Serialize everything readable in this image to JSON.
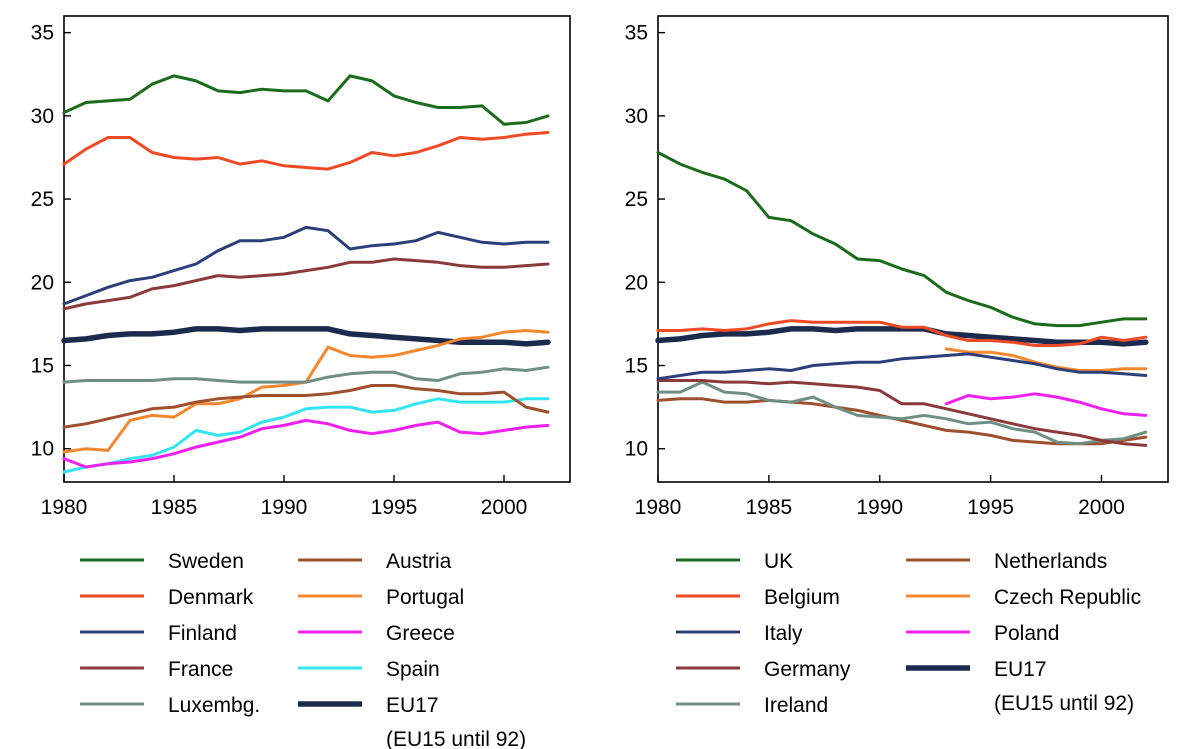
{
  "chart_data": [
    {
      "type": "line",
      "x": [
        1980,
        1981,
        1982,
        1983,
        1984,
        1985,
        1986,
        1987,
        1988,
        1989,
        1990,
        1991,
        1992,
        1993,
        1994,
        1995,
        1996,
        1997,
        1998,
        1999,
        2000,
        2001,
        2002
      ],
      "xlim": [
        1980,
        2003
      ],
      "ylim": [
        8,
        36
      ],
      "xticks": [
        "1980",
        "1985",
        "1990",
        "1995",
        "2000"
      ],
      "yticks": [
        "10",
        "15",
        "20",
        "25",
        "30",
        "35"
      ],
      "legend_position": "bottom",
      "series": [
        {
          "name": "Sweden",
          "color": "#1a6b1a",
          "width": 3,
          "values": [
            30.2,
            30.8,
            30.9,
            31.0,
            31.9,
            32.4,
            32.1,
            31.5,
            31.4,
            31.6,
            31.5,
            31.5,
            30.9,
            32.4,
            32.1,
            31.2,
            30.8,
            30.5,
            30.5,
            30.6,
            29.5,
            29.6,
            30.0
          ]
        },
        {
          "name": "Denmark",
          "color": "#f04a24",
          "width": 3,
          "values": [
            27.1,
            28.0,
            28.7,
            28.7,
            27.8,
            27.5,
            27.4,
            27.5,
            27.1,
            27.3,
            27.0,
            26.9,
            26.8,
            27.2,
            27.8,
            27.6,
            27.8,
            28.2,
            28.7,
            28.6,
            28.7,
            28.9,
            29.0
          ]
        },
        {
          "name": "Finland",
          "color": "#2b3f7a",
          "width": 3,
          "values": [
            18.7,
            19.2,
            19.7,
            20.1,
            20.3,
            20.7,
            21.1,
            21.9,
            22.5,
            22.5,
            22.7,
            23.3,
            23.1,
            22.0,
            22.2,
            22.3,
            22.5,
            23.0,
            22.7,
            22.4,
            22.3,
            22.4,
            22.4
          ]
        },
        {
          "name": "France",
          "color": "#8b3a3a",
          "width": 3,
          "values": [
            18.4,
            18.7,
            18.9,
            19.1,
            19.6,
            19.8,
            20.1,
            20.4,
            20.3,
            20.4,
            20.5,
            20.7,
            20.9,
            21.2,
            21.2,
            21.4,
            21.3,
            21.2,
            21.0,
            20.9,
            20.9,
            21.0,
            21.1
          ]
        },
        {
          "name": "Luxembg.",
          "color": "#6f8f84",
          "width": 3,
          "values": [
            14.0,
            14.1,
            14.1,
            14.1,
            14.1,
            14.2,
            14.2,
            14.1,
            14.0,
            14.0,
            14.0,
            14.0,
            14.3,
            14.5,
            14.6,
            14.6,
            14.2,
            14.1,
            14.5,
            14.6,
            14.8,
            14.7,
            14.9
          ]
        },
        {
          "name": "Austria",
          "color": "#9e4f2e",
          "width": 3,
          "values": [
            11.3,
            11.5,
            11.8,
            12.1,
            12.4,
            12.5,
            12.8,
            13.0,
            13.1,
            13.2,
            13.2,
            13.2,
            13.3,
            13.5,
            13.8,
            13.8,
            13.6,
            13.5,
            13.3,
            13.3,
            13.4,
            12.5,
            12.2
          ]
        },
        {
          "name": "Portugal",
          "color": "#f5872f",
          "width": 3,
          "values": [
            9.8,
            10.0,
            9.9,
            11.7,
            12.0,
            11.9,
            12.7,
            12.7,
            13.0,
            13.7,
            13.8,
            14.0,
            16.1,
            15.6,
            15.5,
            15.6,
            15.9,
            16.2,
            16.6,
            16.7,
            17.0,
            17.1,
            17.0
          ]
        },
        {
          "name": "Greece",
          "color": "#f020f0",
          "width": 3,
          "values": [
            9.4,
            8.9,
            9.1,
            9.2,
            9.4,
            9.7,
            10.1,
            10.4,
            10.7,
            11.2,
            11.4,
            11.7,
            11.5,
            11.1,
            10.9,
            11.1,
            11.4,
            11.6,
            11.0,
            10.9,
            11.1,
            11.3,
            11.4
          ]
        },
        {
          "name": "Spain",
          "color": "#33e5f0",
          "width": 3,
          "values": [
            8.6,
            8.9,
            9.1,
            9.4,
            9.6,
            10.1,
            11.1,
            10.8,
            11.0,
            11.6,
            11.9,
            12.4,
            12.5,
            12.5,
            12.2,
            12.3,
            12.7,
            13.0,
            12.8,
            12.8,
            12.8,
            13.0,
            13.0
          ]
        },
        {
          "name": "EU17",
          "label2": "(EU15 until 92)",
          "color": "#1c2a4e",
          "width": 5.5,
          "values": [
            16.5,
            16.6,
            16.8,
            16.9,
            16.9,
            17.0,
            17.2,
            17.2,
            17.1,
            17.2,
            17.2,
            17.2,
            17.2,
            16.9,
            16.8,
            16.7,
            16.6,
            16.5,
            16.4,
            16.4,
            16.4,
            16.3,
            16.4
          ]
        }
      ]
    },
    {
      "type": "line",
      "x": [
        1980,
        1981,
        1982,
        1983,
        1984,
        1985,
        1986,
        1987,
        1988,
        1989,
        1990,
        1991,
        1992,
        1993,
        1994,
        1995,
        1996,
        1997,
        1998,
        1999,
        2000,
        2001,
        2002
      ],
      "xlim": [
        1980,
        2003
      ],
      "ylim": [
        8,
        36
      ],
      "xticks": [
        "1980",
        "1985",
        "1990",
        "1995",
        "2000"
      ],
      "yticks": [
        "10",
        "15",
        "20",
        "25",
        "30",
        "35"
      ],
      "legend_position": "bottom",
      "series": [
        {
          "name": "UK",
          "color": "#1a6b1a",
          "width": 3,
          "values": [
            27.8,
            27.1,
            26.6,
            26.2,
            25.5,
            23.9,
            23.7,
            22.9,
            22.3,
            21.4,
            21.3,
            20.8,
            20.4,
            19.4,
            18.9,
            18.5,
            17.9,
            17.5,
            17.4,
            17.4,
            17.6,
            17.8,
            17.8
          ]
        },
        {
          "name": "Belgium",
          "color": "#f04a24",
          "width": 3,
          "values": [
            17.1,
            17.1,
            17.2,
            17.1,
            17.2,
            17.5,
            17.7,
            17.6,
            17.6,
            17.6,
            17.6,
            17.3,
            17.3,
            16.8,
            16.5,
            16.5,
            16.4,
            16.2,
            16.2,
            16.3,
            16.7,
            16.5,
            16.7
          ]
        },
        {
          "name": "Italy",
          "color": "#2b3f7a",
          "width": 3,
          "values": [
            14.2,
            14.4,
            14.6,
            14.6,
            14.7,
            14.8,
            14.7,
            15.0,
            15.1,
            15.2,
            15.2,
            15.4,
            15.5,
            15.6,
            15.7,
            15.5,
            15.3,
            15.1,
            14.8,
            14.6,
            14.6,
            14.5,
            14.4
          ]
        },
        {
          "name": "Germany",
          "color": "#8b3a3a",
          "width": 3,
          "values": [
            14.1,
            14.1,
            14.1,
            14.0,
            14.0,
            13.9,
            14.0,
            13.9,
            13.8,
            13.7,
            13.5,
            12.7,
            12.7,
            12.4,
            12.1,
            11.8,
            11.5,
            11.2,
            11.0,
            10.8,
            10.5,
            10.3,
            10.2
          ]
        },
        {
          "name": "Ireland",
          "color": "#6f8f84",
          "width": 3,
          "values": [
            13.4,
            13.4,
            14.0,
            13.4,
            13.3,
            12.9,
            12.8,
            13.1,
            12.5,
            12.0,
            11.9,
            11.8,
            12.0,
            11.8,
            11.5,
            11.6,
            11.2,
            11.0,
            10.4,
            10.3,
            10.5,
            10.6,
            11.0
          ]
        },
        {
          "name": "Netherlands",
          "color": "#9e4f2e",
          "width": 3,
          "values": [
            12.9,
            13.0,
            13.0,
            12.8,
            12.8,
            12.9,
            12.8,
            12.7,
            12.5,
            12.3,
            12.0,
            11.7,
            11.4,
            11.1,
            11.0,
            10.8,
            10.5,
            10.4,
            10.3,
            10.3,
            10.3,
            10.5,
            10.7
          ]
        },
        {
          "name": "Czech Republic",
          "color": "#f5872f",
          "width": 3,
          "values": [
            null,
            null,
            null,
            null,
            null,
            null,
            null,
            null,
            null,
            null,
            null,
            null,
            null,
            16.0,
            15.8,
            15.8,
            15.6,
            15.2,
            14.9,
            14.7,
            14.7,
            14.8,
            14.8
          ]
        },
        {
          "name": "Poland",
          "color": "#f020f0",
          "width": 3,
          "values": [
            null,
            null,
            null,
            null,
            null,
            null,
            null,
            null,
            null,
            null,
            null,
            null,
            null,
            12.7,
            13.2,
            13.0,
            13.1,
            13.3,
            13.1,
            12.8,
            12.4,
            12.1,
            12.0
          ]
        },
        {
          "name": "EU17",
          "label2": "(EU15 until 92)",
          "color": "#1c2a4e",
          "width": 5.5,
          "values": [
            16.5,
            16.6,
            16.8,
            16.9,
            16.9,
            17.0,
            17.2,
            17.2,
            17.1,
            17.2,
            17.2,
            17.2,
            17.2,
            16.9,
            16.8,
            16.7,
            16.6,
            16.5,
            16.4,
            16.4,
            16.4,
            16.3,
            16.4
          ]
        }
      ]
    }
  ]
}
